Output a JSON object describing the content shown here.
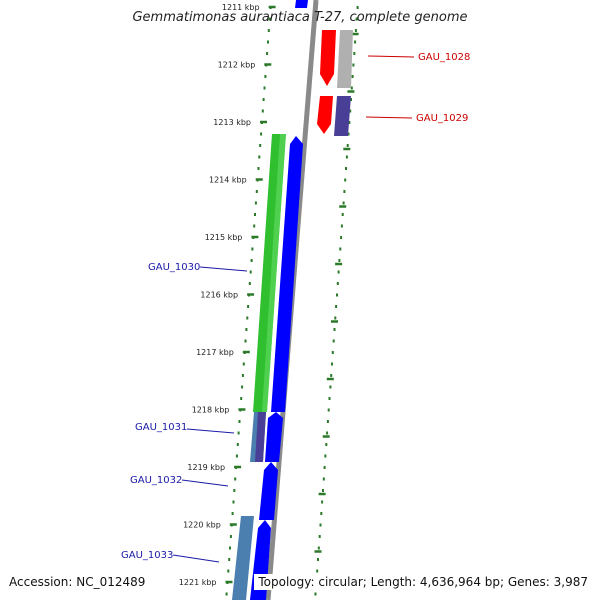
{
  "title": "Gemmatimonas aurantiaca T-27, complete genome",
  "accession": "Accession: NC_012489",
  "summary": "Topology: circular; Length: 4,636,964 bp; Genes: 3,987",
  "scale_ticks": [
    "1211 kbp",
    "1212 kbp",
    "1213 kbp",
    "1214 kbp",
    "1215 kbp",
    "1216 kbp",
    "1217 kbp",
    "1218 kbp",
    "1219 kbp",
    "1220 kbp",
    "1221 kbp"
  ],
  "gene_labels": [
    {
      "text": "GAU_1028",
      "color": "#cc0000"
    },
    {
      "text": "GAU_1029",
      "color": "#cc0000"
    },
    {
      "text": "GAU_1030",
      "color": "#1a1aa8"
    },
    {
      "text": "GAU_1031",
      "color": "#1a1aa8"
    },
    {
      "text": "GAU_1032",
      "color": "#1a1aa8"
    },
    {
      "text": "GAU_1033",
      "color": "#1a1aa8"
    }
  ],
  "colors": {
    "forward_cds": "#0000ff",
    "reverse_cds": "#ff0000",
    "reverse_gray": "#b0b0b0",
    "reverse_purple": "#4a3f96",
    "green_feature": "#2fbf2f",
    "steel_feature": "#4a7fb0",
    "backbone": "#8a8a8a",
    "ticks": "#2a7a2a"
  }
}
